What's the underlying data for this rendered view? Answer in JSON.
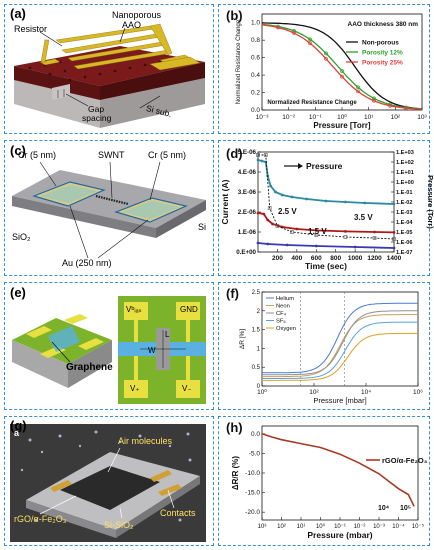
{
  "panels": {
    "a": {
      "label": "(a)",
      "resistor": "Resistor",
      "nanoporous": "Nanoporous",
      "aao": "AAO",
      "gap": "Gap",
      "spacing": "spacing",
      "sisub": "Si sub."
    },
    "c": {
      "label": "(c)",
      "cr_left": "Cr (5 nm)",
      "swnt": "SWNT",
      "cr_right": "Cr (5 nm)",
      "si": "Si",
      "sio2": "SiO₂",
      "au": "Au (250 nm)"
    },
    "e": {
      "label": "(e)",
      "graphene": "Graphene",
      "vbias": "Vᵇᵢₐₛ",
      "gnd": "GND",
      "l": "L",
      "w": "W",
      "vplus": "V₊",
      "vminus": "V₋"
    },
    "g": {
      "label": "(g)",
      "inset": "a",
      "air": "Air molecules",
      "rgo": "rGO/α-Fe₂O₃",
      "sisio2": "Si-SiO₂",
      "contacts": "Contacts"
    }
  },
  "chart_data": [
    {
      "id": "b",
      "label": "(b)",
      "type": "line",
      "xlabel": "Pressure [Torr]",
      "ylabel": "Normalized Resistance Change",
      "xscale": "log",
      "xlim": [
        0.001,
        1000
      ],
      "ylim": [
        0,
        1.1
      ],
      "xticks": [
        "10⁻³",
        "10⁻²",
        "10⁻¹",
        "10⁰",
        "10¹",
        "10²",
        "10³"
      ],
      "yticks": [
        "0.0",
        "0.2",
        "0.4",
        "0.6",
        "0.8",
        "1.0"
      ],
      "annotations": [
        "AAO thickness 380 nm",
        "Normalized Resistance Change"
      ],
      "series": [
        {
          "name": "Non-porous",
          "color": "#111111",
          "mid": 3.0,
          "w": 0.75
        },
        {
          "name": "Porosity 12%",
          "color": "#2ca02c",
          "mid": 0.7,
          "w": 0.6
        },
        {
          "name": "Porosity 25%",
          "color": "#e0403a",
          "mid": 0.45,
          "w": 0.6
        }
      ]
    },
    {
      "id": "d",
      "label": "(d)",
      "type": "line",
      "xlabel": "Time (sec)",
      "ylabel": "Current (A)",
      "ylabel2": "Pressure (Torr)",
      "xlim": [
        0,
        1400
      ],
      "ylim": [
        0,
        5e-06
      ],
      "xticks": [
        200,
        400,
        600,
        800,
        1000,
        1200,
        1400
      ],
      "yticks": [
        "0.E+00",
        "1.E-06",
        "2.E-06",
        "3.E-06",
        "4.E-06",
        "5.E-06"
      ],
      "y2ticks": [
        "1.E+03",
        "1.E+02",
        "1.E+01",
        "1.E+00",
        "1.E-01",
        "1.E-02",
        "1.E-03",
        "1.E-04",
        "1.E-05",
        "1.E-06",
        "1.E-07"
      ],
      "annotations": [
        "Pressure",
        "2.5 V",
        "3.5 V",
        "1.5 V"
      ],
      "series": [
        {
          "name": "3.5 V",
          "color": "#2a8aa0",
          "values": [
            [
              0,
              4.6e-06
            ],
            [
              40,
              4.55e-06
            ],
            [
              80,
              4.5e-06
            ],
            [
              100,
              3.8e-06
            ],
            [
              130,
              3.3e-06
            ],
            [
              180,
              3e-06
            ],
            [
              250,
              2.85e-06
            ],
            [
              350,
              2.75e-06
            ],
            [
              500,
              2.65e-06
            ],
            [
              700,
              2.55e-06
            ],
            [
              900,
              2.5e-06
            ],
            [
              1100,
              2.45e-06
            ],
            [
              1400,
              2.4e-06
            ]
          ]
        },
        {
          "name": "2.5 V",
          "color": "#b01818",
          "values": [
            [
              0,
              1.95e-06
            ],
            [
              60,
              1.9e-06
            ],
            [
              100,
              1.6e-06
            ],
            [
              150,
              1.4e-06
            ],
            [
              250,
              1.25e-06
            ],
            [
              400,
              1.15e-06
            ],
            [
              600,
              1.08e-06
            ],
            [
              900,
              1.03e-06
            ],
            [
              1200,
              1e-06
            ],
            [
              1400,
              9.8e-07
            ]
          ]
        },
        {
          "name": "1.5 V",
          "color": "#3a3ab0",
          "values": [
            [
              0,
              4.5e-07
            ],
            [
              100,
              4e-07
            ],
            [
              300,
              3.5e-07
            ],
            [
              600,
              3e-07
            ],
            [
              1000,
              2.5e-07
            ],
            [
              1400,
              2e-07
            ]
          ]
        },
        {
          "name": "Pressure",
          "color": "#111111",
          "values": [
            [
              0,
              4.85e-06
            ],
            [
              80,
              4.85e-06
            ],
            [
              120,
              2.2e-06
            ],
            [
              200,
              1.3e-06
            ],
            [
              350,
              1e-06
            ],
            [
              600,
              8.5e-07
            ],
            [
              900,
              7.5e-07
            ],
            [
              1200,
              7e-07
            ],
            [
              1400,
              6.5e-07
            ]
          ]
        }
      ]
    },
    {
      "id": "f",
      "label": "(f)",
      "type": "line",
      "xlabel": "Pressure [mbar]",
      "ylabel": "ΔR [%]",
      "xscale": "log",
      "xlim": [
        1,
        1000000
      ],
      "ylim": [
        0,
        2.5
      ],
      "xticks": [
        "10⁰",
        "10²",
        "10⁴",
        "10⁶"
      ],
      "yticks": [
        "0",
        "0.5",
        "1",
        "1.5",
        "2",
        "2.5"
      ],
      "series": [
        {
          "name": "Helium",
          "color": "#4a7bd0",
          "low": 0.35,
          "high": 2.2
        },
        {
          "name": "Neon",
          "color": "#c9a060",
          "low": 0.25,
          "high": 1.9
        },
        {
          "name": "CF₄",
          "color": "#909090",
          "low": 0.3,
          "high": 2.0
        },
        {
          "name": "SF₆",
          "color": "#5aa0e0",
          "low": 0.2,
          "high": 1.7
        },
        {
          "name": "Oxygen",
          "color": "#e0a020",
          "low": 0.15,
          "high": 1.4
        }
      ]
    },
    {
      "id": "h",
      "label": "(h)",
      "type": "line",
      "xlabel": "Pressure (mbar)",
      "ylabel": "ΔR/R (%)",
      "xscale": "log",
      "reversed": true,
      "ylim": [
        -22,
        2
      ],
      "xticks": [
        "10³",
        "10²",
        "10¹",
        "10⁰",
        "10⁻¹",
        "10⁻²",
        "10⁻³",
        "10⁻⁴",
        "10⁻⁵"
      ],
      "yticks": [
        "0.0",
        "-5.0",
        "-10.0",
        "-15.0",
        "-20.0"
      ],
      "annotations": [
        "10⁴",
        "10⁵"
      ],
      "series": [
        {
          "name": "rGO/α-Fe₂O₃",
          "color": "#a83a22",
          "values": [
            [
              0,
              0
            ],
            [
              0.5,
              -0.8
            ],
            [
              1,
              -1.5
            ],
            [
              2,
              -2.5
            ],
            [
              3,
              -3.5
            ],
            [
              4,
              -5.2
            ],
            [
              5,
              -7.5
            ],
            [
              6,
              -10.2
            ],
            [
              6.6,
              -12.5
            ],
            [
              7,
              -14
            ],
            [
              7.5,
              -15.5
            ],
            [
              7.8,
              -18.5
            ]
          ]
        }
      ]
    }
  ]
}
